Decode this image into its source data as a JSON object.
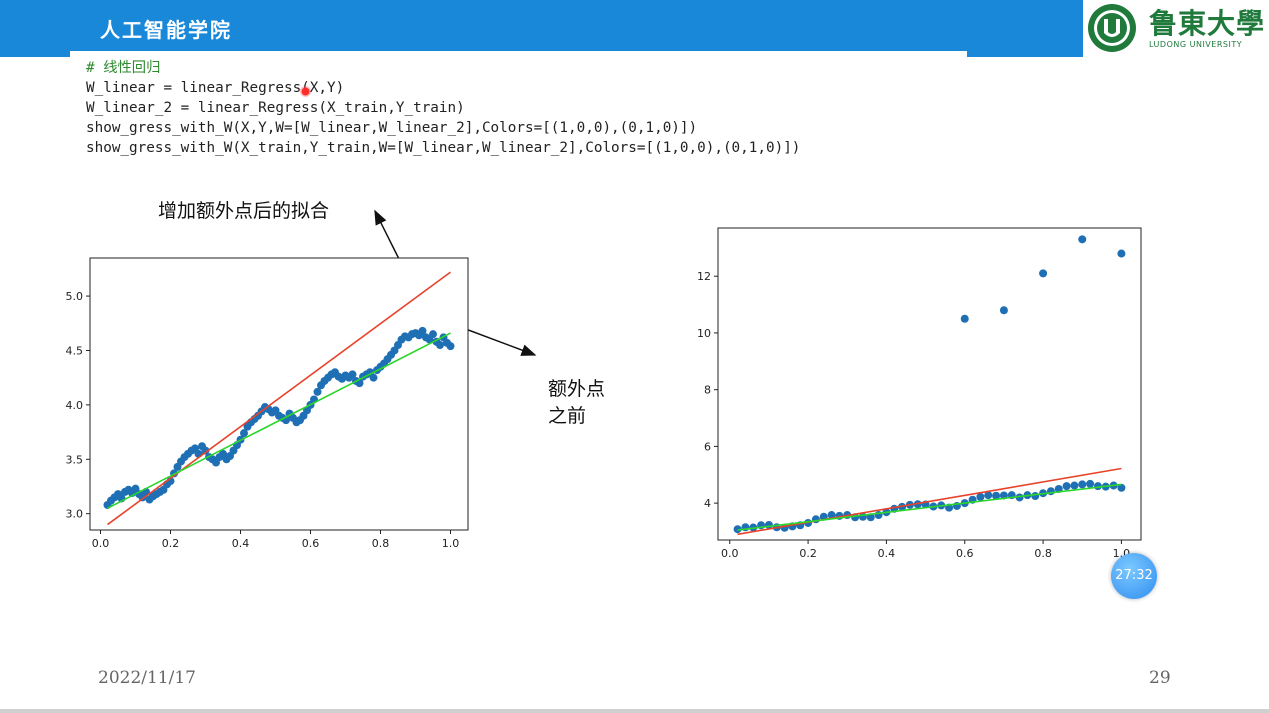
{
  "header": {
    "title": "人工智能学院",
    "logo_text": "鲁東大學",
    "logo_subtext": "LUDONG UNIVERSITY",
    "colors": {
      "bar": "#1a88d8",
      "logo": "#1f7a3c"
    }
  },
  "code": {
    "line1": "# 线性回归",
    "line2": "W_linear = linear_Regress(X,Y)",
    "line3": "W_linear_2 = linear_Regress(X_train,Y_train)",
    "line4": "show_gress_with_W(X,Y,W=[W_linear,W_linear_2],Colors=[(1,0,0),(0,1,0)])",
    "line5": "show_gress_with_W(X_train,Y_train,W=[W_linear,W_linear_2],Colors=[(1,0,0),(0,1,0)])"
  },
  "annotations": {
    "after_label": "增加额外点后的拟合",
    "before_label_line1": "额外点",
    "before_label_line2": "之前"
  },
  "chart_data": [
    {
      "type": "scatter",
      "xlim": [
        -0.03,
        1.05
      ],
      "ylim": [
        2.85,
        5.35
      ],
      "xticks": [
        "0.0",
        "0.2",
        "0.4",
        "0.6",
        "0.8",
        "1.0"
      ],
      "yticks": [
        "3.0",
        "3.5",
        "4.0",
        "4.5",
        "5.0"
      ],
      "scatter_color": "#1f6fb5",
      "points": [
        [
          0.02,
          3.08
        ],
        [
          0.03,
          3.12
        ],
        [
          0.04,
          3.15
        ],
        [
          0.05,
          3.18
        ],
        [
          0.06,
          3.14
        ],
        [
          0.07,
          3.2
        ],
        [
          0.08,
          3.22
        ],
        [
          0.09,
          3.19
        ],
        [
          0.1,
          3.23
        ],
        [
          0.11,
          3.18
        ],
        [
          0.12,
          3.15
        ],
        [
          0.13,
          3.2
        ],
        [
          0.14,
          3.13
        ],
        [
          0.15,
          3.16
        ],
        [
          0.16,
          3.18
        ],
        [
          0.17,
          3.2
        ],
        [
          0.18,
          3.22
        ],
        [
          0.19,
          3.27
        ],
        [
          0.2,
          3.3
        ],
        [
          0.21,
          3.37
        ],
        [
          0.22,
          3.43
        ],
        [
          0.23,
          3.48
        ],
        [
          0.24,
          3.52
        ],
        [
          0.25,
          3.55
        ],
        [
          0.26,
          3.58
        ],
        [
          0.27,
          3.6
        ],
        [
          0.28,
          3.55
        ],
        [
          0.29,
          3.62
        ],
        [
          0.3,
          3.58
        ],
        [
          0.31,
          3.52
        ],
        [
          0.32,
          3.5
        ],
        [
          0.33,
          3.47
        ],
        [
          0.34,
          3.52
        ],
        [
          0.35,
          3.55
        ],
        [
          0.36,
          3.5
        ],
        [
          0.37,
          3.53
        ],
        [
          0.38,
          3.58
        ],
        [
          0.39,
          3.63
        ],
        [
          0.4,
          3.68
        ],
        [
          0.41,
          3.74
        ],
        [
          0.42,
          3.8
        ],
        [
          0.43,
          3.84
        ],
        [
          0.44,
          3.87
        ],
        [
          0.45,
          3.9
        ],
        [
          0.46,
          3.94
        ],
        [
          0.47,
          3.98
        ],
        [
          0.48,
          3.96
        ],
        [
          0.49,
          3.93
        ],
        [
          0.5,
          3.95
        ],
        [
          0.51,
          3.9
        ],
        [
          0.52,
          3.88
        ],
        [
          0.53,
          3.86
        ],
        [
          0.54,
          3.92
        ],
        [
          0.55,
          3.88
        ],
        [
          0.56,
          3.84
        ],
        [
          0.57,
          3.86
        ],
        [
          0.58,
          3.9
        ],
        [
          0.59,
          3.95
        ],
        [
          0.6,
          4.0
        ],
        [
          0.61,
          4.05
        ],
        [
          0.62,
          4.12
        ],
        [
          0.63,
          4.18
        ],
        [
          0.64,
          4.22
        ],
        [
          0.65,
          4.25
        ],
        [
          0.66,
          4.28
        ],
        [
          0.67,
          4.3
        ],
        [
          0.68,
          4.26
        ],
        [
          0.69,
          4.24
        ],
        [
          0.7,
          4.27
        ],
        [
          0.71,
          4.25
        ],
        [
          0.72,
          4.28
        ],
        [
          0.73,
          4.22
        ],
        [
          0.74,
          4.2
        ],
        [
          0.75,
          4.26
        ],
        [
          0.76,
          4.28
        ],
        [
          0.77,
          4.3
        ],
        [
          0.78,
          4.25
        ],
        [
          0.79,
          4.32
        ],
        [
          0.8,
          4.35
        ],
        [
          0.81,
          4.38
        ],
        [
          0.82,
          4.42
        ],
        [
          0.83,
          4.46
        ],
        [
          0.84,
          4.5
        ],
        [
          0.85,
          4.55
        ],
        [
          0.86,
          4.6
        ],
        [
          0.87,
          4.63
        ],
        [
          0.88,
          4.62
        ],
        [
          0.89,
          4.65
        ],
        [
          0.9,
          4.66
        ],
        [
          0.91,
          4.64
        ],
        [
          0.92,
          4.68
        ],
        [
          0.93,
          4.62
        ],
        [
          0.94,
          4.6
        ],
        [
          0.95,
          4.65
        ],
        [
          0.96,
          4.58
        ],
        [
          0.97,
          4.55
        ],
        [
          0.98,
          4.62
        ],
        [
          0.99,
          4.57
        ],
        [
          1.0,
          4.54
        ]
      ],
      "lines": [
        {
          "color": "#e8432a",
          "x": [
            0.02,
            1.0
          ],
          "y": [
            2.9,
            5.22
          ]
        },
        {
          "color": "#2bd62b",
          "x": [
            0.02,
            1.0
          ],
          "y": [
            3.05,
            4.66
          ]
        }
      ]
    },
    {
      "type": "scatter",
      "xlim": [
        -0.03,
        1.05
      ],
      "ylim": [
        2.7,
        13.7
      ],
      "xticks": [
        "0.0",
        "0.2",
        "0.4",
        "0.6",
        "0.8",
        "1.0"
      ],
      "yticks": [
        "4",
        "6",
        "8",
        "10",
        "12"
      ],
      "scatter_color": "#1f6fb5",
      "points": [
        [
          0.02,
          3.08
        ],
        [
          0.04,
          3.15
        ],
        [
          0.06,
          3.14
        ],
        [
          0.08,
          3.22
        ],
        [
          0.1,
          3.23
        ],
        [
          0.12,
          3.15
        ],
        [
          0.14,
          3.13
        ],
        [
          0.16,
          3.18
        ],
        [
          0.18,
          3.22
        ],
        [
          0.2,
          3.3
        ],
        [
          0.22,
          3.43
        ],
        [
          0.24,
          3.52
        ],
        [
          0.26,
          3.58
        ],
        [
          0.28,
          3.55
        ],
        [
          0.3,
          3.58
        ],
        [
          0.32,
          3.5
        ],
        [
          0.34,
          3.52
        ],
        [
          0.36,
          3.5
        ],
        [
          0.38,
          3.58
        ],
        [
          0.4,
          3.68
        ],
        [
          0.42,
          3.8
        ],
        [
          0.44,
          3.87
        ],
        [
          0.46,
          3.94
        ],
        [
          0.48,
          3.96
        ],
        [
          0.5,
          3.95
        ],
        [
          0.52,
          3.88
        ],
        [
          0.54,
          3.92
        ],
        [
          0.56,
          3.84
        ],
        [
          0.58,
          3.9
        ],
        [
          0.6,
          4.0
        ],
        [
          0.62,
          4.12
        ],
        [
          0.64,
          4.22
        ],
        [
          0.66,
          4.28
        ],
        [
          0.68,
          4.26
        ],
        [
          0.7,
          4.27
        ],
        [
          0.72,
          4.28
        ],
        [
          0.74,
          4.2
        ],
        [
          0.76,
          4.28
        ],
        [
          0.78,
          4.25
        ],
        [
          0.8,
          4.35
        ],
        [
          0.82,
          4.42
        ],
        [
          0.84,
          4.5
        ],
        [
          0.86,
          4.6
        ],
        [
          0.88,
          4.62
        ],
        [
          0.9,
          4.66
        ],
        [
          0.92,
          4.68
        ],
        [
          0.94,
          4.6
        ],
        [
          0.96,
          4.58
        ],
        [
          0.98,
          4.62
        ],
        [
          1.0,
          4.54
        ],
        [
          0.6,
          10.5
        ],
        [
          0.7,
          10.8
        ],
        [
          0.8,
          12.1
        ],
        [
          0.9,
          13.3
        ],
        [
          1.0,
          12.8
        ]
      ],
      "lines": [
        {
          "color": "#e8432a",
          "x": [
            0.02,
            1.0
          ],
          "y": [
            2.9,
            5.22
          ]
        },
        {
          "color": "#2bd62b",
          "x": [
            0.02,
            1.0
          ],
          "y": [
            3.05,
            4.66
          ]
        }
      ]
    }
  ],
  "footer": {
    "date": "2022/11/17",
    "page": "29",
    "timer": "27:32"
  }
}
